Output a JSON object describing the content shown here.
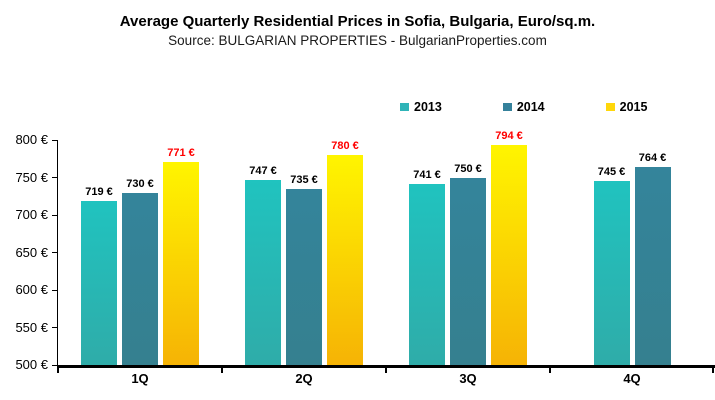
{
  "chart_data": {
    "type": "bar",
    "title": "Average Quarterly Residential Prices in Sofia, Bulgaria, Euro/sq.m.",
    "subtitle": "Source: BULGARIAN PROPERTIES - BulgarianProperties.com",
    "categories": [
      "1Q",
      "2Q",
      "3Q",
      "4Q"
    ],
    "series": [
      {
        "name": "2013",
        "values": [
          719,
          747,
          741,
          745
        ],
        "bar_color_top": "#20c3bf",
        "bar_color_bottom": "#2faca9",
        "legend_color": "#2fb4b8",
        "value_label_color": "#000000"
      },
      {
        "name": "2014",
        "values": [
          730,
          735,
          750,
          764
        ],
        "bar_color_top": "#34849b",
        "bar_color_bottom": "#35808f",
        "legend_color": "#35819b",
        "value_label_color": "#000000"
      },
      {
        "name": "2015",
        "values": [
          771,
          780,
          794,
          null
        ],
        "bar_color_top": "#fff500",
        "bar_color_bottom": "#f6b305",
        "legend_color": "#ffd70a",
        "value_label_color": "#ff0000"
      }
    ],
    "value_suffix": " €",
    "ylim": [
      500,
      800
    ],
    "yticks": [
      800,
      750,
      700,
      650,
      600,
      550,
      500
    ],
    "ytick_suffix": " €",
    "grid": false,
    "legend_position": "top-right",
    "axis_color": "#000000",
    "background_color": "#ffffff"
  }
}
